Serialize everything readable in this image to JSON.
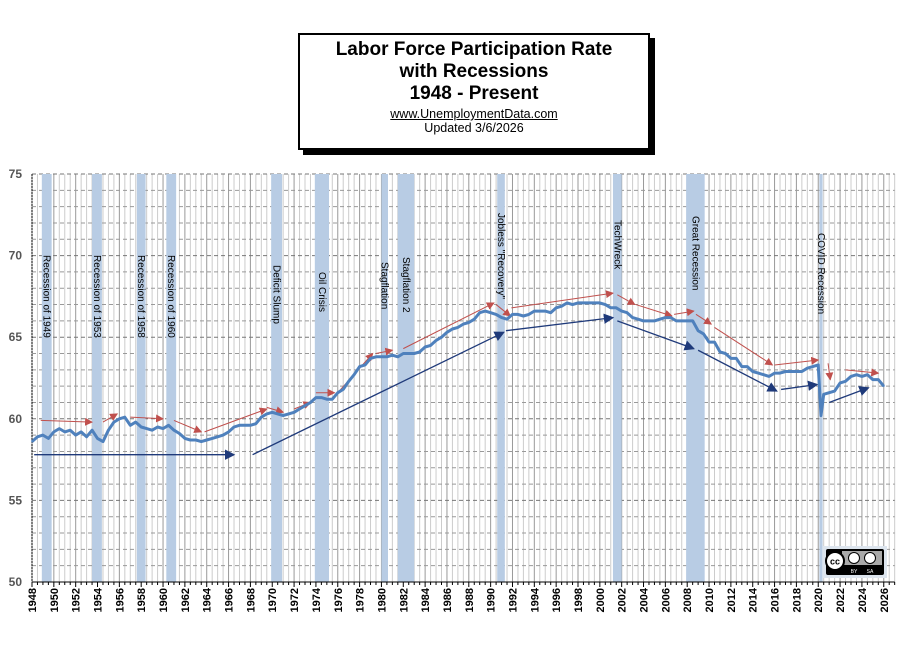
{
  "header": {
    "title_line1": "Labor Force Participation Rate",
    "title_line2": "with Recessions",
    "title_line3": "1948 - Present",
    "url": "www.UnemploymentData.com",
    "updated": "Updated  3/6/2026"
  },
  "license_badge": {
    "text": "CC BY SA",
    "icon": "creative-commons-by-sa-icon"
  },
  "chart_data": {
    "type": "line",
    "title": "Labor Force Participation Rate with Recessions 1948 - Present",
    "xlabel": "",
    "ylabel": "",
    "xlim": [
      1948,
      2027
    ],
    "ylim": [
      50,
      75
    ],
    "yticks": [
      "50",
      "55",
      "60",
      "65",
      "70",
      "75"
    ],
    "xticks": [
      "1948",
      "1950",
      "1952",
      "1954",
      "1956",
      "1958",
      "1960",
      "1962",
      "1964",
      "1966",
      "1968",
      "1970",
      "1972",
      "1974",
      "1976",
      "1978",
      "1980",
      "1982",
      "1984",
      "1986",
      "1988",
      "1990",
      "1992",
      "1994",
      "1996",
      "1998",
      "2000",
      "2002",
      "2004",
      "2006",
      "2008",
      "2010",
      "2012",
      "2014",
      "2016",
      "2018",
      "2020",
      "2022",
      "2024",
      "2026"
    ],
    "grid": true,
    "line_color": "#4f81bd",
    "recession_color": "#b8cce4",
    "series": [
      {
        "x": [
          1948,
          1948.5,
          1949,
          1949.5,
          1950,
          1950.5,
          1951,
          1951.5,
          1952,
          1952.5,
          1953,
          1953.5,
          1954,
          1954.5,
          1955,
          1955.5,
          1956,
          1956.5,
          1957,
          1957.5,
          1958,
          1958.5,
          1959,
          1959.5,
          1960,
          1960.5,
          1961,
          1961.5,
          1962,
          1962.5,
          1963,
          1963.5,
          1964,
          1964.5,
          1965,
          1965.5,
          1966,
          1966.5,
          1967,
          1967.5,
          1968,
          1968.5,
          1969,
          1969.5,
          1970,
          1970.5,
          1971,
          1971.5,
          1972,
          1972.5,
          1973,
          1973.5,
          1974,
          1974.5,
          1975,
          1975.5,
          1976,
          1976.5,
          1977,
          1977.5,
          1978,
          1978.5,
          1979,
          1979.5,
          1980,
          1980.5,
          1981,
          1981.5,
          1982,
          1982.5,
          1983,
          1983.5,
          1984,
          1984.5,
          1985,
          1985.5,
          1986,
          1986.5,
          1987,
          1987.5,
          1988,
          1988.5,
          1989,
          1989.5,
          1990,
          1990.5,
          1991,
          1991.5,
          1992,
          1992.5,
          1993,
          1993.5,
          1994,
          1994.5,
          1995,
          1995.5,
          1996,
          1996.5,
          1997,
          1997.5,
          1998,
          1998.5,
          1999,
          1999.5,
          2000,
          2000.5,
          2001,
          2001.5,
          2002,
          2002.5,
          2003,
          2003.5,
          2004,
          2004.5,
          2005,
          2005.5,
          2006,
          2006.5,
          2007,
          2007.5,
          2008,
          2008.5,
          2009,
          2009.5,
          2010,
          2010.5,
          2011,
          2011.5,
          2012,
          2012.5,
          2013,
          2013.5,
          2014,
          2014.5,
          2015,
          2015.5,
          2016,
          2016.5,
          2017,
          2017.5,
          2018,
          2018.5,
          2019,
          2019.5,
          2020,
          2020.25,
          2020.5,
          2021,
          2021.5,
          2022,
          2022.5,
          2023,
          2023.5,
          2024,
          2024.5,
          2025,
          2025.5,
          2026
        ],
        "values": [
          58.6,
          58.9,
          59.0,
          58.8,
          59.2,
          59.4,
          59.2,
          59.3,
          59.0,
          59.2,
          58.9,
          59.3,
          58.8,
          58.6,
          59.3,
          59.8,
          60.0,
          60.1,
          59.6,
          59.8,
          59.5,
          59.4,
          59.3,
          59.5,
          59.4,
          59.6,
          59.3,
          59.1,
          58.8,
          58.7,
          58.7,
          58.6,
          58.7,
          58.8,
          58.9,
          59.0,
          59.2,
          59.5,
          59.6,
          59.6,
          59.6,
          59.7,
          60.1,
          60.3,
          60.4,
          60.3,
          60.2,
          60.3,
          60.4,
          60.6,
          60.8,
          61.0,
          61.3,
          61.3,
          61.2,
          61.2,
          61.6,
          61.8,
          62.3,
          62.7,
          63.2,
          63.3,
          63.7,
          63.8,
          63.8,
          63.8,
          63.9,
          63.8,
          64.0,
          64.0,
          64.0,
          64.1,
          64.4,
          64.5,
          64.8,
          65.0,
          65.3,
          65.5,
          65.6,
          65.8,
          65.9,
          66.1,
          66.5,
          66.6,
          66.5,
          66.4,
          66.2,
          66.1,
          66.4,
          66.4,
          66.3,
          66.4,
          66.6,
          66.6,
          66.6,
          66.5,
          66.8,
          66.9,
          67.1,
          67.0,
          67.1,
          67.1,
          67.1,
          67.1,
          67.1,
          67.0,
          66.8,
          66.8,
          66.6,
          66.5,
          66.2,
          66.1,
          66.0,
          66.0,
          66.0,
          66.1,
          66.2,
          66.2,
          66.0,
          66.0,
          66.0,
          66.0,
          65.4,
          65.2,
          64.7,
          64.7,
          64.1,
          64.0,
          63.7,
          63.7,
          63.2,
          63.2,
          62.9,
          62.8,
          62.7,
          62.6,
          62.8,
          62.8,
          62.9,
          62.9,
          62.9,
          62.9,
          63.1,
          63.2,
          63.3,
          60.2,
          61.5,
          61.6,
          61.7,
          62.2,
          62.3,
          62.6,
          62.7,
          62.6,
          62.7,
          62.4,
          62.4,
          62.0
        ]
      }
    ],
    "recessions": [
      {
        "start": 1948.9,
        "end": 1949.8,
        "label": "Recession of 1949"
      },
      {
        "start": 1953.5,
        "end": 1954.4,
        "label": "Recession of 1953"
      },
      {
        "start": 1957.6,
        "end": 1958.4,
        "label": "Recession of 1958"
      },
      {
        "start": 1960.3,
        "end": 1961.2,
        "label": "Recession of 1960"
      },
      {
        "start": 1969.9,
        "end": 1970.9,
        "label": "Deficit Slump"
      },
      {
        "start": 1973.9,
        "end": 1975.2,
        "label": "Oil Crisis"
      },
      {
        "start": 1980.0,
        "end": 1980.6,
        "label": "Stagflation"
      },
      {
        "start": 1981.5,
        "end": 1983.0,
        "label": "Stagflation 2"
      },
      {
        "start": 1990.6,
        "end": 1991.3,
        "label": "Jobless \"Recovery\""
      },
      {
        "start": 2001.2,
        "end": 2002.0,
        "label": "TechWreck"
      },
      {
        "start": 2007.9,
        "end": 2009.6,
        "label": "Great Recession"
      },
      {
        "start": 2020.1,
        "end": 2020.4,
        "label": "COVID Recession"
      }
    ],
    "annotations": {
      "red_arrows": [
        [
          1948.8,
          59.9,
          1953.5,
          59.8
        ],
        [
          1954.5,
          59.8,
          1955.8,
          60.3
        ],
        [
          1957,
          60.1,
          1960,
          60.0
        ],
        [
          1961,
          59.9,
          1963.5,
          59.2
        ],
        [
          1963.8,
          59.2,
          1969.5,
          60.6
        ],
        [
          1969.5,
          60.7,
          1971,
          60.4
        ],
        [
          1972,
          60.6,
          1973.5,
          61.0
        ],
        [
          1974,
          61.6,
          1975.7,
          61.6
        ],
        [
          1976,
          61.6,
          1979.2,
          64.0
        ],
        [
          1979.5,
          64.0,
          1981,
          64.2
        ],
        [
          1982,
          64.3,
          1990.3,
          67.1
        ],
        [
          1990.5,
          67.0,
          1991.8,
          66.3
        ],
        [
          1991.9,
          66.8,
          2001.2,
          67.7
        ],
        [
          2001.6,
          67.6,
          2003.2,
          67.0
        ],
        [
          2003.3,
          67.0,
          2006.6,
          66.3
        ],
        [
          2006.8,
          66.4,
          2008.6,
          66.6
        ],
        [
          2008.8,
          66.4,
          2010.2,
          65.8
        ],
        [
          2010.5,
          65.6,
          2015.8,
          63.3
        ],
        [
          2016,
          63.3,
          2020,
          63.6
        ],
        [
          2020.9,
          63.4,
          2021.1,
          62.4
        ],
        [
          2022.5,
          63.0,
          2025.5,
          62.8
        ]
      ],
      "blue_arrows": [
        [
          1948.2,
          57.8,
          1966.5,
          57.8
        ],
        [
          1968.2,
          57.8,
          1991.2,
          65.3
        ],
        [
          1991.4,
          65.4,
          2001.2,
          66.2
        ],
        [
          2001.6,
          66.0,
          2008.6,
          64.3
        ],
        [
          2009,
          64.2,
          2016.2,
          61.7
        ],
        [
          2016.6,
          61.8,
          2019.9,
          62.1
        ],
        [
          2021,
          61.0,
          2024.6,
          61.9
        ]
      ]
    }
  }
}
